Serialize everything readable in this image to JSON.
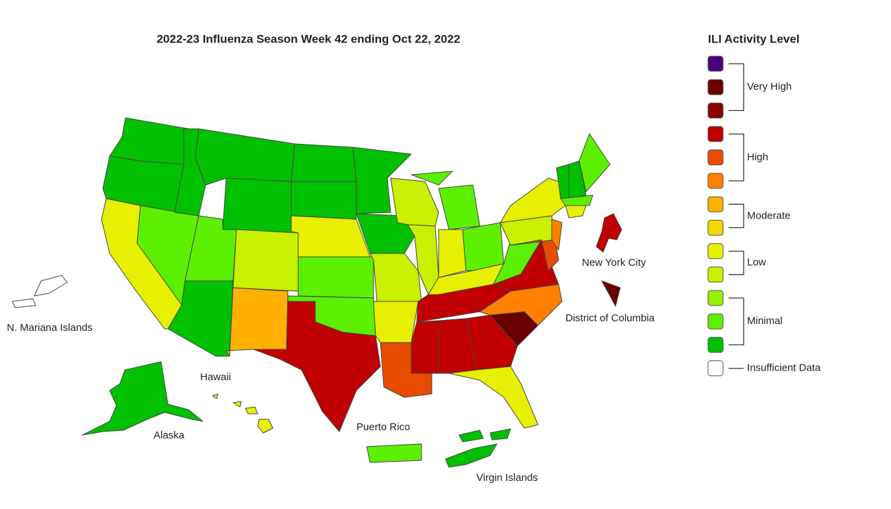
{
  "title": "2022-23 Influenza Season Week 42 ending Oct 22, 2022",
  "legend": {
    "title": "ILI Activity Level",
    "levels": [
      {
        "label": "Very High",
        "colors": [
          "#4b0082",
          "#6b0000",
          "#8b0000"
        ]
      },
      {
        "label": "High",
        "colors": [
          "#c00000",
          "#e84c00",
          "#ff8000"
        ]
      },
      {
        "label": "Moderate",
        "colors": [
          "#ffb000",
          "#f5d800"
        ]
      },
      {
        "label": "Low",
        "colors": [
          "#e6f000",
          "#c8f000"
        ]
      },
      {
        "label": "Minimal",
        "colors": [
          "#98f000",
          "#5cf000",
          "#00c000"
        ]
      },
      {
        "label": "Insufficient Data",
        "colors": [
          "#ffffff"
        ]
      }
    ]
  },
  "map_labels": [
    "New York City",
    "District of Columbia",
    "N. Mariana Islands",
    "Hawaii",
    "Alaska",
    "Puerto Rico",
    "Virgin Islands"
  ]
}
